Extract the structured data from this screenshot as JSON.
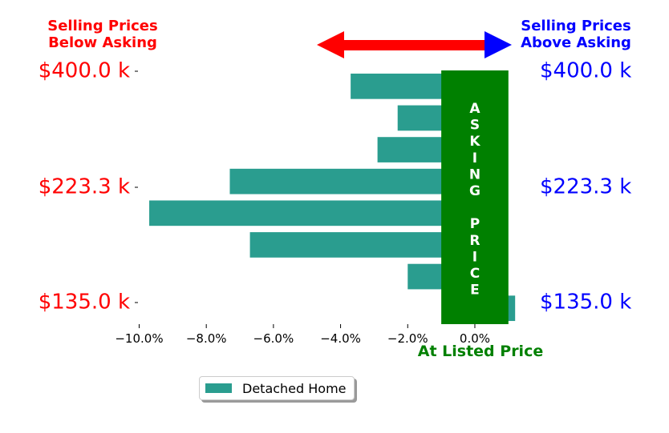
{
  "header": {
    "left": [
      "Selling Prices",
      "Below Asking"
    ],
    "right": [
      "Selling Prices",
      "Above Asking"
    ],
    "left_color": "#ff0000",
    "right_color": "#0000ff"
  },
  "asking_box": {
    "text_col1": [
      "A",
      "S",
      "K",
      "I",
      "N",
      "G"
    ],
    "text_col2": [
      "P",
      "R",
      "I",
      "C",
      "E"
    ],
    "color": "#008000"
  },
  "at_listed_label": "At Listed Price",
  "legend": {
    "label": "Detached Home",
    "color": "#2a9d8f"
  },
  "chart_data": {
    "type": "bar",
    "orientation": "horizontal",
    "series": [
      {
        "name": "Detached Home",
        "values": [
          -3.7,
          -2.3,
          -2.9,
          -7.3,
          -9.7,
          -6.7,
          -2.0,
          1.2
        ]
      }
    ],
    "xlim": [
      -10.8,
      1.1
    ],
    "x_ticks": [
      -10,
      -8,
      -6,
      -4,
      -2,
      0
    ],
    "x_tick_labels": [
      "−10.0%",
      "−8.0%",
      "−6.0%",
      "−4.0%",
      "−2.0%",
      "0.0%"
    ],
    "y_tick_labels": [
      "$400.0 k",
      "$223.3 k",
      "$135.0 k"
    ],
    "asking_band": [
      -1.0,
      1.0
    ],
    "grid": false
  }
}
